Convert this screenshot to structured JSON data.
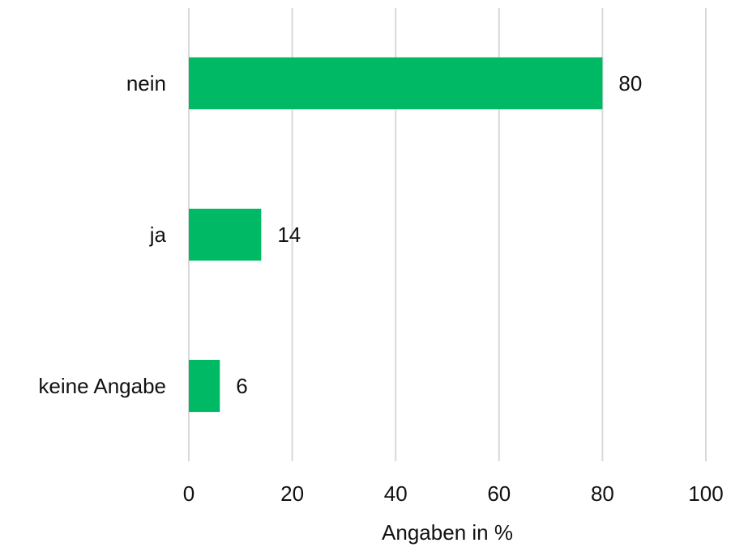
{
  "chart_data": {
    "type": "bar",
    "orientation": "horizontal",
    "categories": [
      "nein",
      "ja",
      "keine Angabe"
    ],
    "values": [
      80,
      14,
      6
    ],
    "color": "#00b964",
    "xlabel": "Angaben in %",
    "xlim": [
      0,
      100
    ],
    "xticks": [
      0,
      20,
      40,
      60,
      80,
      100
    ],
    "grid": true
  }
}
